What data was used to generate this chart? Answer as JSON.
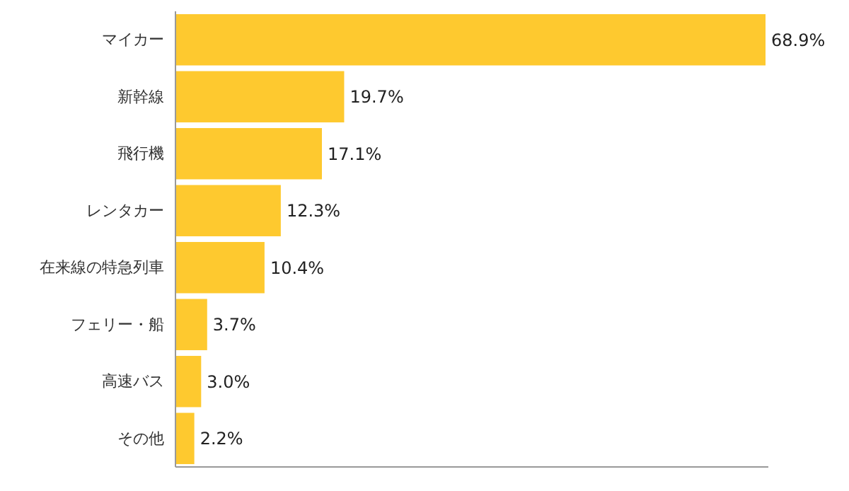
{
  "chart_data": {
    "type": "bar",
    "orientation": "horizontal",
    "categories": [
      "マイカー",
      "新幹線",
      "飛行機",
      "レンタカー",
      "在来線の特急列車",
      "フェリー・船",
      "高速バス",
      "その他"
    ],
    "values": [
      68.9,
      19.7,
      17.1,
      12.3,
      10.4,
      3.7,
      3.0,
      2.2
    ],
    "value_labels": [
      "68.9%",
      "19.7%",
      "17.1%",
      "12.3%",
      "10.4%",
      "3.7%",
      "3.0%",
      "2.2%"
    ],
    "color": "#fec92f"
  }
}
